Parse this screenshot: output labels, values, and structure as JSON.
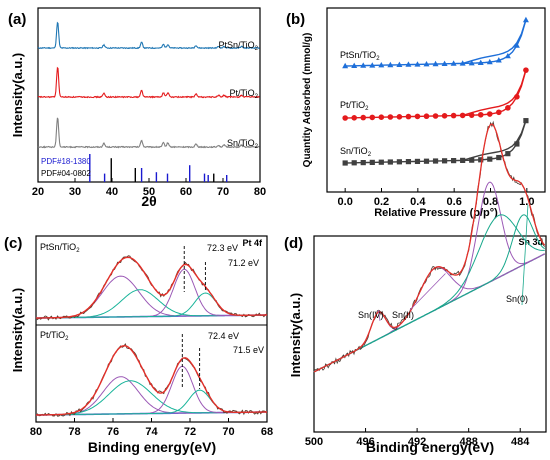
{
  "chart_data": [
    {
      "panel": "(a)",
      "type": "line",
      "xlabel": "2θ",
      "ylabel": "Intensity(a.u.)",
      "xlim": [
        20,
        80
      ],
      "xticks": [
        "20",
        "30",
        "40",
        "50",
        "60",
        "70",
        "80"
      ],
      "series": [
        {
          "name": "PtSn/TiO2",
          "color": "#1f77b4",
          "peaks": [
            [
              25.3,
              1.0
            ],
            [
              37.8,
              0.12
            ],
            [
              48.0,
              0.22
            ],
            [
              53.9,
              0.14
            ],
            [
              55.1,
              0.14
            ],
            [
              62.7,
              0.1
            ],
            [
              68.8,
              0.06
            ],
            [
              70.3,
              0.06
            ],
            [
              75.0,
              0.06
            ]
          ]
        },
        {
          "name": "Pt/TiO2",
          "color": "#e41a1c",
          "peaks": [
            [
              25.3,
              1.0
            ],
            [
              37.8,
              0.12
            ],
            [
              48.0,
              0.22
            ],
            [
              53.9,
              0.14
            ],
            [
              55.1,
              0.14
            ],
            [
              62.7,
              0.1
            ],
            [
              68.8,
              0.06
            ],
            [
              70.3,
              0.06
            ],
            [
              75.0,
              0.06
            ]
          ]
        },
        {
          "name": "Sn/TiO2",
          "color": "#808080",
          "peaks": [
            [
              25.3,
              1.0
            ],
            [
              37.8,
              0.12
            ],
            [
              48.0,
              0.22
            ],
            [
              53.9,
              0.14
            ],
            [
              55.1,
              0.14
            ],
            [
              62.7,
              0.1
            ],
            [
              68.8,
              0.06
            ],
            [
              70.3,
              0.06
            ],
            [
              75.0,
              0.06
            ]
          ]
        }
      ],
      "reference": [
        {
          "name": "PDF#18-1380",
          "color": "#1a1ad0",
          "x": [
            34.0,
            38.0,
            48.0,
            52.0,
            55.0,
            61.0,
            65.0,
            66.0,
            71.0
          ],
          "h": [
            1.0,
            0.3,
            0.5,
            0.35,
            0.3,
            0.6,
            0.3,
            0.25,
            0.25
          ]
        },
        {
          "name": "PDF#04-0802",
          "color": "#000000",
          "x": [
            39.8,
            46.3,
            67.5
          ],
          "h": [
            0.85,
            0.5,
            0.3
          ]
        }
      ]
    },
    {
      "panel": "(b)",
      "type": "line",
      "xlabel": "Relative Pressure (p/p°)",
      "ylabel": "Quantity Adsorbed (mmol/g)",
      "xlim": [
        -0.1,
        1.1
      ],
      "xticks": [
        "0.0",
        "0.2",
        "0.4",
        "0.6",
        "0.8",
        "1.0"
      ],
      "series": [
        {
          "name": "PtSn/TiO2",
          "color": "#1e6fd9",
          "marker": "triangle"
        },
        {
          "name": "Pt/TiO2",
          "color": "#e41a1c",
          "marker": "circle"
        },
        {
          "name": "Sn/TiO2",
          "color": "#404040",
          "marker": "square"
        }
      ]
    },
    {
      "panel": "(c)",
      "type": "line",
      "title": "Pt 4f",
      "xlabel": "Binding energy(eV)",
      "ylabel": "Intensity(a.u.)",
      "xlim": [
        80,
        68
      ],
      "xticks": [
        "80",
        "78",
        "76",
        "74",
        "72",
        "70",
        "68"
      ],
      "subpanels": [
        {
          "name": "PtSn/TiO2",
          "peak_labels": [
            "72.3 eV",
            "71.2 eV"
          ],
          "peak_positions": [
            72.3,
            71.2
          ]
        },
        {
          "name": "Pt/TiO2",
          "peak_labels": [
            "72.4 eV",
            "71.5 eV"
          ],
          "peak_positions": [
            72.4,
            71.5
          ]
        }
      ]
    },
    {
      "panel": "(d)",
      "type": "line",
      "title": "Sn 3d",
      "xlabel": "Binding energy(eV)",
      "ylabel": "Intensity(a.u.)",
      "xlim": [
        500,
        482
      ],
      "xticks": [
        "500",
        "496",
        "492",
        "488",
        "484"
      ],
      "annotations": [
        "Sn(IV)",
        "Sn(II)",
        "Sn(0)"
      ]
    }
  ]
}
